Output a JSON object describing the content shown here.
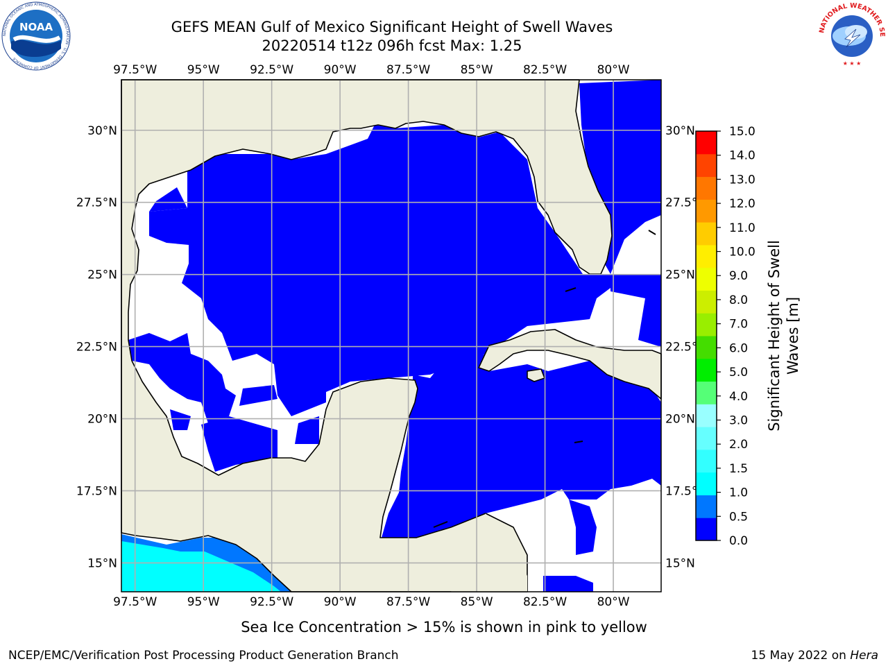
{
  "header": {
    "title_line1": "GEFS MEAN Gulf of Mexico Significant Height of Swell Waves",
    "title_line2": "20220514 t12z 096h fcst   Max: 1.25"
  },
  "logos": {
    "left": {
      "name": "NOAA",
      "ring_text": "NATIONAL OCEANIC AND ATMOSPHERIC ADMINISTRATION · U.S. DEPARTMENT OF COMMERCE"
    },
    "right": {
      "name": "NWS",
      "ring_text": "NATIONAL WEATHER SERVICE"
    }
  },
  "map": {
    "lon_range": [
      -98,
      -78.25
    ],
    "lat_range": [
      14,
      31.75
    ],
    "lon_ticks": [
      "97.5°W",
      "95°W",
      "92.5°W",
      "90°W",
      "87.5°W",
      "85°W",
      "82.5°W",
      "80°W"
    ],
    "lon_tick_values": [
      -97.5,
      -95,
      -92.5,
      -90,
      -87.5,
      -85,
      -82.5,
      -80
    ],
    "lat_ticks": [
      "15°N",
      "17.5°N",
      "20°N",
      "22.5°N",
      "25°N",
      "27.5°N",
      "30°N"
    ],
    "lat_tick_values": [
      15,
      17.5,
      20,
      22.5,
      25,
      27.5,
      30
    ],
    "colors": {
      "land": "#eeeedd",
      "ocean_missing": "#ffffff",
      "grid": "#b0b0b0",
      "coast": "#000000"
    }
  },
  "colorbar": {
    "label": "Significant Height of Swell Waves [m]",
    "ticks": [
      "0.0",
      "0.5",
      "1.0",
      "1.5",
      "2.0",
      "3.0",
      "4.0",
      "5.0",
      "6.0",
      "7.0",
      "8.0",
      "9.0",
      "10.0",
      "11.0",
      "12.0",
      "13.0",
      "14.0",
      "15.0"
    ],
    "colors": [
      "#0000ff",
      "#0077ff",
      "#00ffff",
      "#33ffff",
      "#66ffff",
      "#99ffff",
      "#55ff77",
      "#00ee00",
      "#44dd00",
      "#99ee00",
      "#ccee00",
      "#eeff00",
      "#ffee00",
      "#ffcc00",
      "#ff9900",
      "#ff7700",
      "#ff4400",
      "#ff0000"
    ]
  },
  "footer": {
    "note": "Sea Ice Concentration > 15% is shown in pink to yellow",
    "branch": "NCEP/EMC/Verification Post Processing Product Generation Branch",
    "date": "15 May 2022 on ",
    "host": "Hera"
  }
}
